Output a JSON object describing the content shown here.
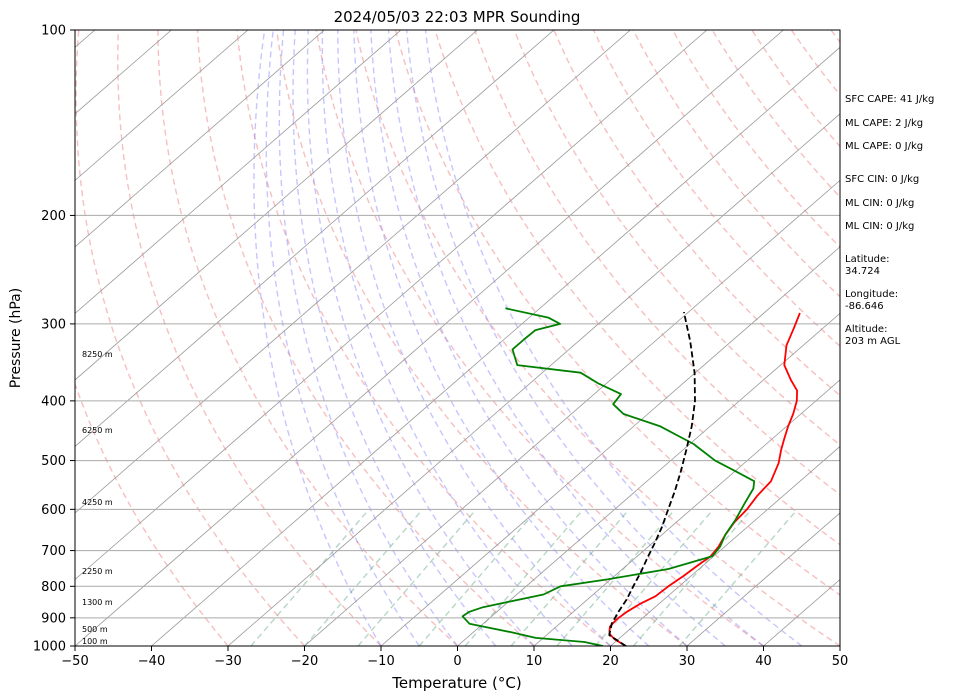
{
  "chart_data": {
    "type": "line",
    "title": "2024/05/03 22:03 MPR Sounding",
    "xlabel": "Temperature (°C)",
    "ylabel": "Pressure (hPa)",
    "xlim": [
      -50,
      50
    ],
    "ylim": [
      1000,
      100
    ],
    "y_scale": "log",
    "skew": "skew-T (isotherms slanted)",
    "grid": true,
    "x_ticks": [
      "−50",
      "−40",
      "−30",
      "−20",
      "−10",
      "0",
      "10",
      "20",
      "30",
      "40",
      "50"
    ],
    "y_ticks": [
      "100",
      "200",
      "300",
      "400",
      "500",
      "600",
      "700",
      "800",
      "900",
      "1000"
    ],
    "series": [
      {
        "color": "#ff0000",
        "points": [
          [
            1000,
            22.0
          ],
          [
            975,
            19.5
          ],
          [
            955,
            18.0
          ],
          [
            930,
            17.0
          ],
          [
            905,
            16.8
          ],
          [
            880,
            17.0
          ],
          [
            855,
            17.5
          ],
          [
            830,
            18.4
          ],
          [
            800,
            18.6
          ],
          [
            770,
            19.0
          ],
          [
            740,
            19.3
          ],
          [
            715,
            19.6
          ],
          [
            690,
            19.2
          ],
          [
            660,
            18.3
          ],
          [
            630,
            17.6
          ],
          [
            600,
            17.3
          ],
          [
            570,
            16.6
          ],
          [
            540,
            16.2
          ],
          [
            505,
            14.5
          ],
          [
            480,
            12.8
          ],
          [
            460,
            11.5
          ],
          [
            440,
            10.2
          ],
          [
            420,
            9.0
          ],
          [
            400,
            7.5
          ],
          [
            385,
            6.0
          ],
          [
            370,
            3.6
          ],
          [
            350,
            0.5
          ],
          [
            325,
            -2.2
          ],
          [
            305,
            -3.8
          ],
          [
            288,
            -5.3
          ]
        ]
      },
      {
        "color": "#008000",
        "points": [
          [
            1000,
            19.0
          ],
          [
            985,
            16.0
          ],
          [
            970,
            9.0
          ],
          [
            950,
            5.0
          ],
          [
            920,
            -1.8
          ],
          [
            895,
            -3.8
          ],
          [
            880,
            -3.6
          ],
          [
            865,
            -2.5
          ],
          [
            850,
            -0.3
          ],
          [
            825,
            3.5
          ],
          [
            800,
            4.5
          ],
          [
            780,
            9.5
          ],
          [
            750,
            16.0
          ],
          [
            715,
            19.8
          ],
          [
            690,
            19.4
          ],
          [
            660,
            18.3
          ],
          [
            625,
            17.4
          ],
          [
            590,
            16.2
          ],
          [
            555,
            15.0
          ],
          [
            540,
            14.0
          ],
          [
            520,
            10.0
          ],
          [
            500,
            5.8
          ],
          [
            470,
            0.5
          ],
          [
            440,
            -6.5
          ],
          [
            420,
            -13.2
          ],
          [
            405,
            -16.0
          ],
          [
            390,
            -16.5
          ],
          [
            375,
            -21.0
          ],
          [
            360,
            -25.0
          ],
          [
            350,
            -34.4
          ],
          [
            330,
            -37.4
          ],
          [
            318,
            -37.4
          ],
          [
            307,
            -37.3
          ],
          [
            300,
            -35.0
          ],
          [
            293,
            -37.5
          ],
          [
            283,
            -44.5
          ]
        ]
      },
      {
        "color": "#000000",
        "dashed": true,
        "points": [
          [
            1000,
            22.0
          ],
          [
            960,
            18.2
          ],
          [
            920,
            16.8
          ],
          [
            880,
            15.9
          ],
          [
            840,
            15.1
          ],
          [
            800,
            14.0
          ],
          [
            760,
            12.9
          ],
          [
            720,
            11.6
          ],
          [
            680,
            10.3
          ],
          [
            640,
            8.8
          ],
          [
            600,
            7.0
          ],
          [
            560,
            5.1
          ],
          [
            520,
            2.9
          ],
          [
            480,
            0.4
          ],
          [
            440,
            -2.4
          ],
          [
            400,
            -5.8
          ],
          [
            360,
            -10.1
          ],
          [
            320,
            -15.4
          ],
          [
            287,
            -20.6
          ]
        ]
      }
    ],
    "height_labels": [
      "100 m",
      "500 m",
      "1300 m",
      "2250 m",
      "4250 m",
      "6250 m",
      "8250 m"
    ],
    "annotations": [
      "SFC CAPE: 41 J/kg",
      "ML CAPE: 2 J/kg",
      "ML CAPE: 0 J/kg",
      "SFC CIN: 0 J/kg",
      "ML CIN: 0 J/kg",
      "ML CIN: 0 J/kg",
      "Latitude:",
      "34.724",
      "Longitude:",
      "-86.646",
      "Altitude:",
      "203 m AGL"
    ]
  }
}
